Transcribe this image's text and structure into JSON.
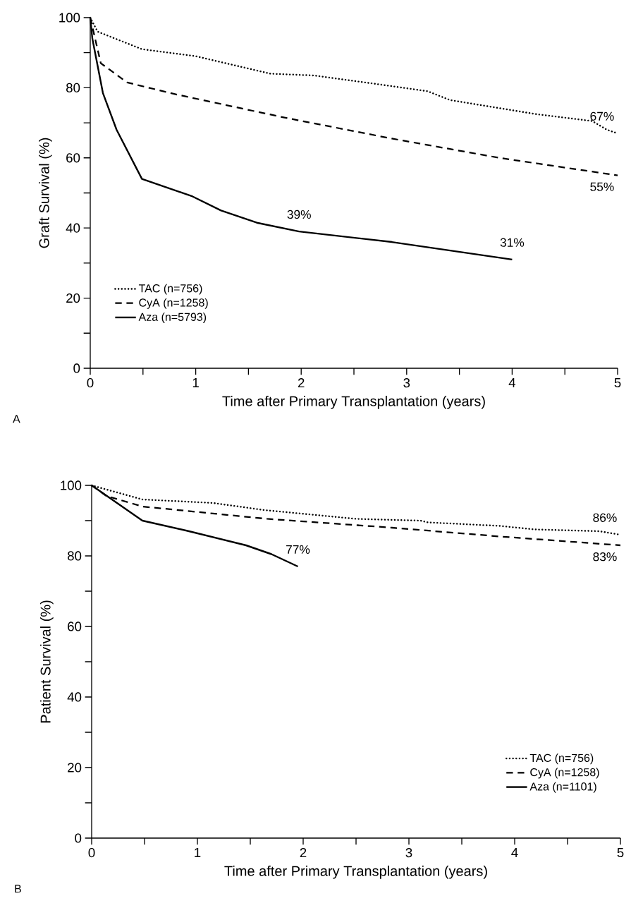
{
  "chart_data": [
    {
      "type": "line",
      "xlabel": "Time after Primary Transplantation (years)",
      "ylabel": "Graft Survival (%)",
      "xlim": [
        0,
        5
      ],
      "ylim": [
        0,
        100
      ],
      "xticks": [
        0,
        {
          "value": 0.5,
          "label": null
        },
        1,
        {
          "value": 1.5,
          "label": null
        },
        2,
        {
          "value": 2.5,
          "label": null
        },
        3,
        {
          "value": 3.5,
          "label": null
        },
        4,
        {
          "value": 4.5,
          "label": null
        },
        5
      ],
      "yticks": [
        0,
        {
          "value": 10,
          "label": null
        },
        20,
        {
          "value": 30,
          "label": null
        },
        40,
        {
          "value": 50,
          "label": null
        },
        60,
        {
          "value": 70,
          "label": null
        },
        80,
        {
          "value": 90,
          "label": null
        },
        100
      ],
      "legend": "bottom left",
      "annotations": [
        "A"
      ],
      "series": [
        {
          "name": "TAC (n=756)",
          "color": "#000000",
          "line_style": "dotted",
          "x": [
            0,
            0.07,
            0.49,
            1.0,
            1.71,
            2.12,
            2.73,
            3.2,
            3.41,
            4.22,
            4.76,
            4.9,
            5
          ],
          "values": [
            100,
            96,
            91,
            89,
            84,
            83.5,
            81,
            79,
            76.5,
            72.5,
            70.5,
            68,
            67
          ],
          "value_labels": [
            null,
            null,
            null,
            null,
            null,
            null,
            null,
            null,
            null,
            null,
            null,
            null,
            "67%"
          ]
        },
        {
          "name": "CyA (n=1258)",
          "color": "#000000",
          "line_style": "dashed",
          "x": [
            0,
            0.1,
            0.35,
            0.83,
            1.84,
            2.86,
            3.88,
            5
          ],
          "values": [
            100,
            87,
            81.5,
            78,
            71.5,
            65.5,
            60,
            55
          ],
          "value_labels": [
            null,
            null,
            null,
            null,
            null,
            null,
            null,
            "55%"
          ]
        },
        {
          "name": "Aza (n=5793)",
          "color": "#000000",
          "line_style": "solid",
          "x": [
            0,
            0.02,
            0.12,
            0.25,
            0.49,
            0.97,
            1.24,
            1.58,
            1.98,
            2.86,
            4.0
          ],
          "values": [
            100,
            94,
            78.5,
            68,
            54,
            49,
            45,
            41.5,
            39,
            36,
            31
          ],
          "value_labels": [
            null,
            null,
            null,
            null,
            null,
            null,
            null,
            null,
            "39%",
            null,
            "31%"
          ]
        }
      ]
    },
    {
      "type": "line",
      "xlabel": "Time after Primary Transplantation (years)",
      "ylabel": "Patient Survival (%)",
      "xlim": [
        0,
        5
      ],
      "ylim": [
        0,
        100
      ],
      "xticks": [
        0,
        {
          "value": 0.5,
          "label": null
        },
        1,
        {
          "value": 1.5,
          "label": null
        },
        2,
        {
          "value": 2.5,
          "label": null
        },
        3,
        {
          "value": 3.5,
          "label": null
        },
        4,
        {
          "value": 4.5,
          "label": null
        },
        5
      ],
      "yticks": [
        0,
        {
          "value": 10,
          "label": null
        },
        20,
        {
          "value": 30,
          "label": null
        },
        40,
        {
          "value": 50,
          "label": null
        },
        60,
        {
          "value": 70,
          "label": null
        },
        80,
        {
          "value": 90,
          "label": null
        },
        100
      ],
      "legend": "bottom right",
      "annotations": [
        "B"
      ],
      "series": [
        {
          "name": "TAC (n=756)",
          "color": "#000000",
          "line_style": "dotted",
          "x": [
            0,
            0.48,
            1.15,
            1.63,
            2.5,
            3.11,
            3.18,
            3.86,
            4.19,
            4.8,
            5
          ],
          "values": [
            100,
            96,
            95,
            93,
            90.5,
            90,
            89.5,
            88.5,
            87.5,
            87,
            86
          ],
          "value_labels": [
            null,
            null,
            null,
            null,
            null,
            null,
            null,
            null,
            null,
            null,
            "86%"
          ]
        },
        {
          "name": "CyA (n=1258)",
          "color": "#000000",
          "line_style": "dashed",
          "x": [
            0,
            0.14,
            0.48,
            1.66,
            2.84,
            3.86,
            5
          ],
          "values": [
            100,
            97,
            94,
            90.5,
            88,
            85.5,
            83
          ],
          "value_labels": [
            null,
            null,
            null,
            null,
            null,
            null,
            "83%"
          ]
        },
        {
          "name": "Aza (n=1101)",
          "color": "#000000",
          "line_style": "solid",
          "x": [
            0,
            0.48,
            0.92,
            1.46,
            1.7,
            1.95
          ],
          "values": [
            100,
            90,
            87,
            83,
            80.5,
            77
          ],
          "value_labels": [
            null,
            null,
            null,
            null,
            null,
            "77%"
          ]
        }
      ]
    }
  ]
}
